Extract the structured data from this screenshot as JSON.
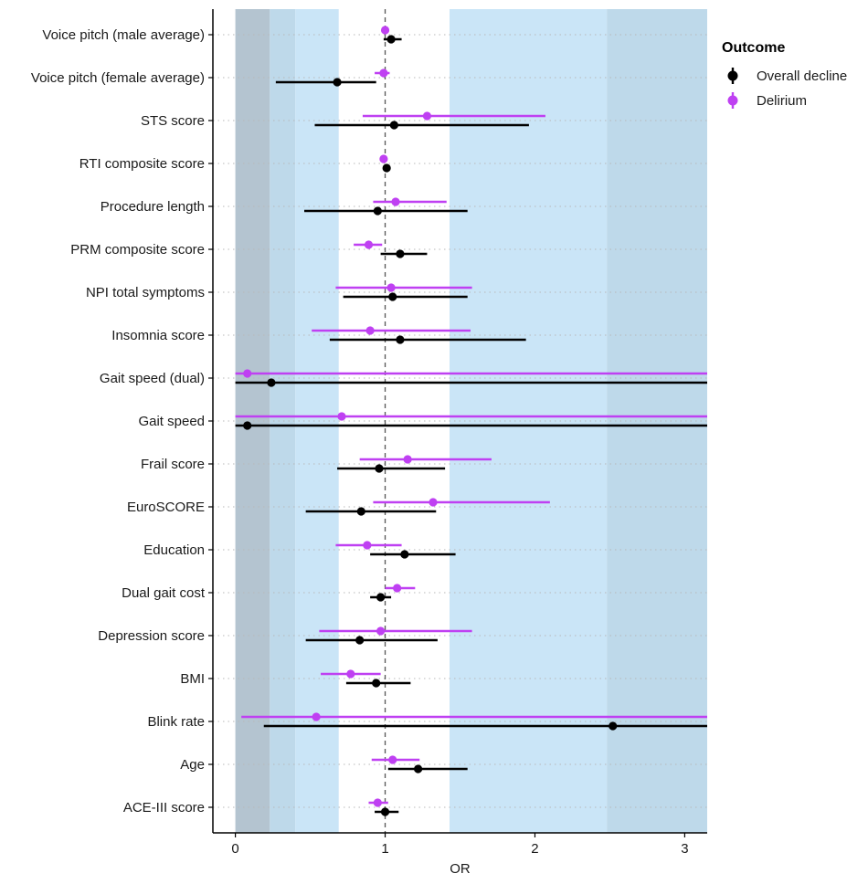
{
  "chart_data": {
    "type": "forest",
    "title": "",
    "xlabel": "OR",
    "ylabel": "",
    "xlim": [
      -0.15,
      3.15
    ],
    "x_ticks": [
      0,
      1,
      2,
      3
    ],
    "reference_line": 1,
    "legend": {
      "title": "Outcome",
      "position": "right",
      "entries": [
        "Overall decline",
        "Delirium"
      ]
    },
    "series_colors": {
      "Overall decline": "#000000",
      "Delirium": "#bf40f2"
    },
    "shaded_bands": [
      {
        "from": 0,
        "to": 0.23,
        "color": "#b4c4d0"
      },
      {
        "from": 0.23,
        "to": 0.4,
        "color": "#bed9ea"
      },
      {
        "from": 0.4,
        "to": 0.69,
        "color": "#cae5f7"
      },
      {
        "from": 1.43,
        "to": 2.48,
        "color": "#cae5f7"
      },
      {
        "from": 2.48,
        "to": 3.15,
        "color": "#bed9ea"
      }
    ],
    "categories": [
      "Voice pitch (male average)",
      "Voice pitch (female average)",
      "STS score",
      "RTI composite score",
      "Procedure length",
      "PRM composite score",
      "NPI total symptoms",
      "Insomnia score",
      "Gait speed (dual)",
      "Gait speed",
      "Frail score",
      "EuroSCORE",
      "Education",
      "Dual gait cost",
      "Depression score",
      "BMI",
      "Blink rate",
      "Age",
      "ACE-III score"
    ],
    "series": [
      {
        "name": "Overall decline",
        "points": [
          {
            "or": 1.04,
            "lo": 0.99,
            "hi": 1.11
          },
          {
            "or": 0.68,
            "lo": 0.27,
            "hi": 0.94
          },
          {
            "or": 1.06,
            "lo": 0.53,
            "hi": 1.96
          },
          {
            "or": 1.01,
            "lo": 0.99,
            "hi": 1.03
          },
          {
            "or": 0.95,
            "lo": 0.46,
            "hi": 1.55
          },
          {
            "or": 1.1,
            "lo": 0.97,
            "hi": 1.28
          },
          {
            "or": 1.05,
            "lo": 0.72,
            "hi": 1.55
          },
          {
            "or": 1.1,
            "lo": 0.63,
            "hi": 1.94
          },
          {
            "or": 0.24,
            "lo": 0.0,
            "hi": 3.15
          },
          {
            "or": 0.08,
            "lo": 0.0,
            "hi": 3.15
          },
          {
            "or": 0.96,
            "lo": 0.68,
            "hi": 1.4
          },
          {
            "or": 0.84,
            "lo": 0.47,
            "hi": 1.34
          },
          {
            "or": 1.13,
            "lo": 0.9,
            "hi": 1.47
          },
          {
            "or": 0.97,
            "lo": 0.9,
            "hi": 1.04
          },
          {
            "or": 0.83,
            "lo": 0.47,
            "hi": 1.35
          },
          {
            "or": 0.94,
            "lo": 0.74,
            "hi": 1.17
          },
          {
            "or": 2.52,
            "lo": 0.19,
            "hi": 3.15
          },
          {
            "or": 1.22,
            "lo": 1.02,
            "hi": 1.55
          },
          {
            "or": 1.0,
            "lo": 0.93,
            "hi": 1.09
          }
        ]
      },
      {
        "name": "Delirium",
        "points": [
          {
            "or": 1.0,
            "lo": 0.98,
            "hi": 1.02
          },
          {
            "or": 0.99,
            "lo": 0.93,
            "hi": 1.03
          },
          {
            "or": 1.28,
            "lo": 0.85,
            "hi": 2.07
          },
          {
            "or": 0.99,
            "lo": 0.97,
            "hi": 1.01
          },
          {
            "or": 1.07,
            "lo": 0.92,
            "hi": 1.41
          },
          {
            "or": 0.89,
            "lo": 0.79,
            "hi": 0.98
          },
          {
            "or": 1.04,
            "lo": 0.67,
            "hi": 1.58
          },
          {
            "or": 0.9,
            "lo": 0.51,
            "hi": 1.57
          },
          {
            "or": 0.08,
            "lo": 0.0,
            "hi": 3.15
          },
          {
            "or": 0.71,
            "lo": 0.0,
            "hi": 3.15
          },
          {
            "or": 1.15,
            "lo": 0.83,
            "hi": 1.71
          },
          {
            "or": 1.32,
            "lo": 0.92,
            "hi": 2.1
          },
          {
            "or": 0.88,
            "lo": 0.67,
            "hi": 1.11
          },
          {
            "or": 1.08,
            "lo": 1.0,
            "hi": 1.2
          },
          {
            "or": 0.97,
            "lo": 0.56,
            "hi": 1.58
          },
          {
            "or": 0.77,
            "lo": 0.57,
            "hi": 0.97
          },
          {
            "or": 0.54,
            "lo": 0.04,
            "hi": 3.15
          },
          {
            "or": 1.05,
            "lo": 0.91,
            "hi": 1.23
          },
          {
            "or": 0.95,
            "lo": 0.89,
            "hi": 1.02
          }
        ]
      }
    ]
  }
}
